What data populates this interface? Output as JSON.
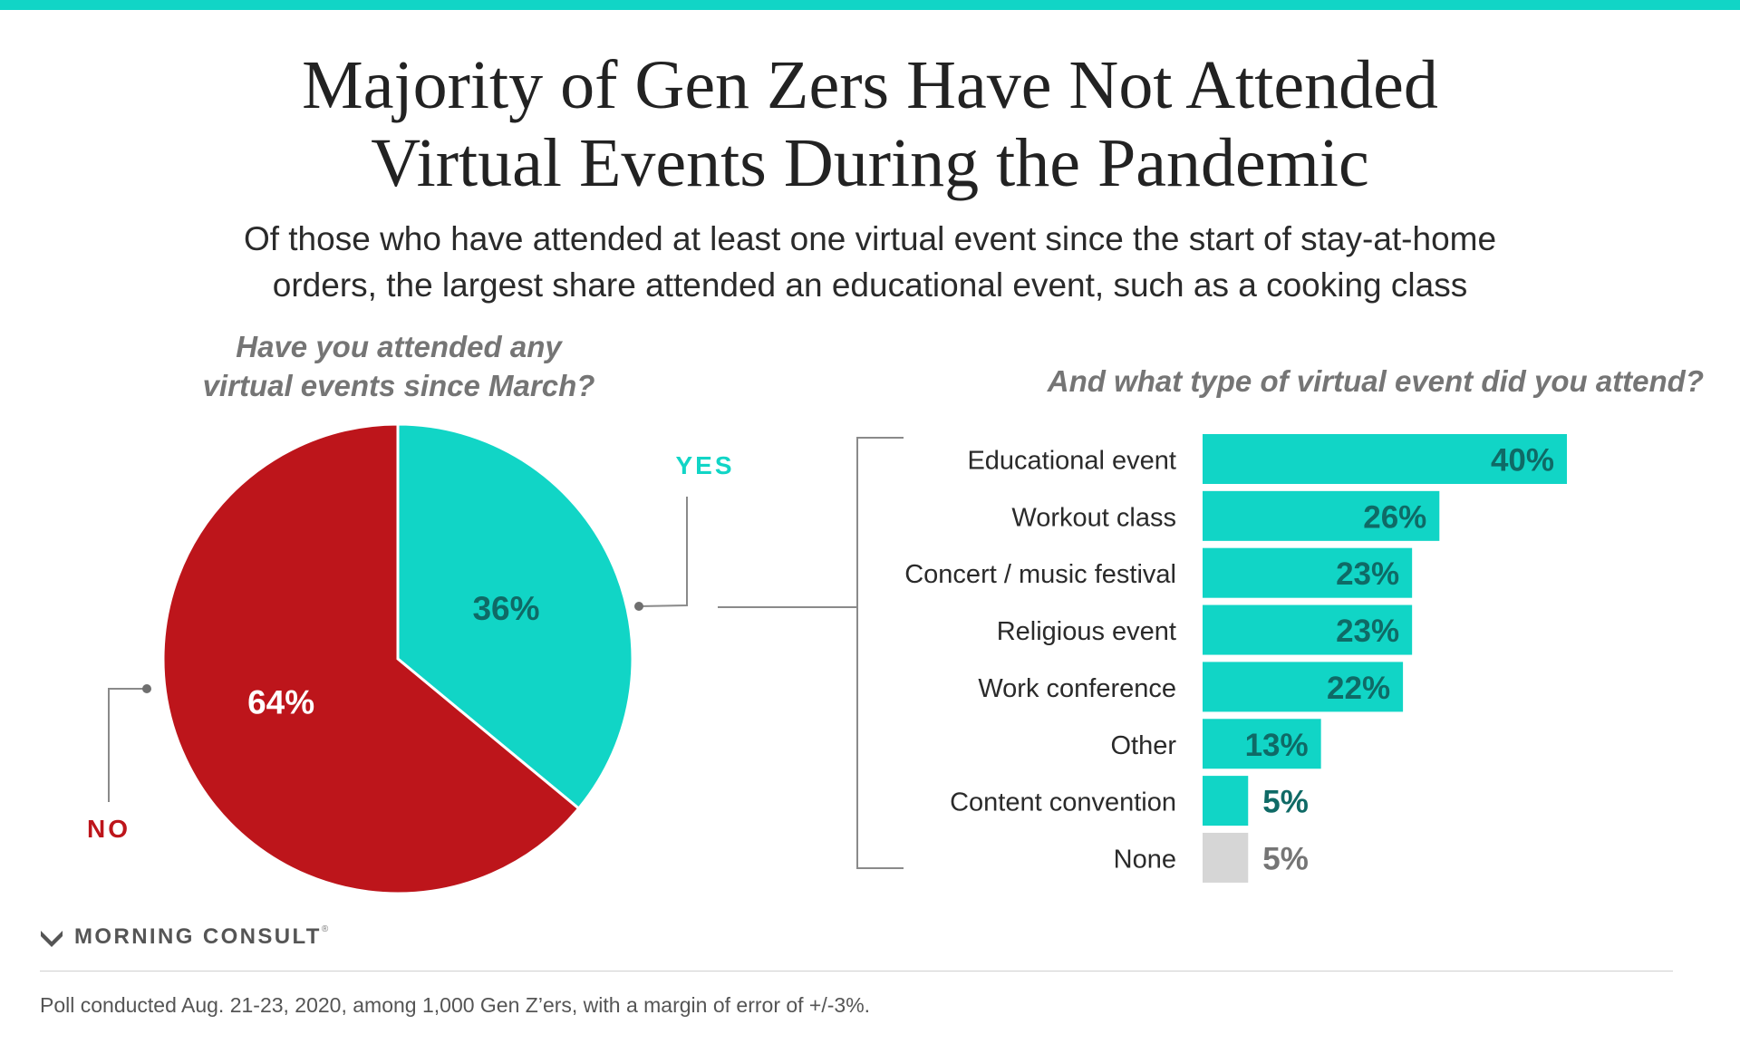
{
  "title_lines": [
    "Majority of Gen Zers Have Not Attended",
    "Virtual Events During the Pandemic"
  ],
  "subtitle_lines": [
    "Of those who have attended at least one virtual event since the start of stay-at-home",
    "orders, the largest share attended an educational event, such as a cooking class"
  ],
  "colors": {
    "accent": "#11d5c6",
    "no": "#bd151b",
    "none": "#d6d6d6",
    "bar_label_dark": "#0f6a66",
    "muted": "#757575"
  },
  "chart_data": [
    {
      "type": "pie",
      "title": "Have you attended any virtual events since March?",
      "title_lines": [
        "Have you attended any",
        "virtual events since March?"
      ],
      "slices": [
        {
          "label": "YES",
          "value": 36,
          "value_label": "36%",
          "color": "#11d5c6"
        },
        {
          "label": "NO",
          "value": 64,
          "value_label": "64%",
          "color": "#bd151b"
        }
      ]
    },
    {
      "type": "bar",
      "orientation": "horizontal",
      "title": "And what type of virtual event did you attend?",
      "categories": [
        "Educational event",
        "Workout class",
        "Concert / music festival",
        "Religious event",
        "Work conference",
        "Other",
        "Content convention",
        "None"
      ],
      "values": [
        40,
        26,
        23,
        23,
        22,
        13,
        5,
        5
      ],
      "value_labels": [
        "40%",
        "26%",
        "23%",
        "23%",
        "22%",
        "13%",
        "5%",
        "5%"
      ],
      "colors": [
        "#11d5c6",
        "#11d5c6",
        "#11d5c6",
        "#11d5c6",
        "#11d5c6",
        "#11d5c6",
        "#11d5c6",
        "#d6d6d6"
      ],
      "unit": "%"
    }
  ],
  "brand": {
    "name": "MORNING CONSULT",
    "mark": "®"
  },
  "footnote": "Poll conducted Aug. 21-23, 2020, among 1,000 Gen Z’ers, with a margin of error of +/-3%."
}
